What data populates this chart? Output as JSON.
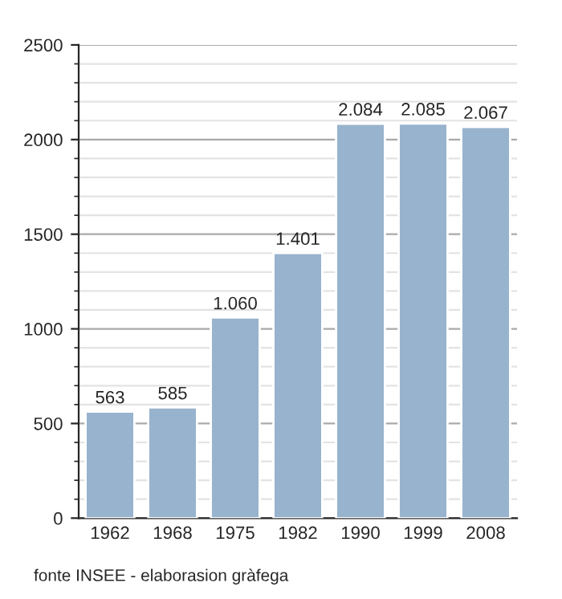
{
  "chart_data": {
    "type": "bar",
    "categories": [
      "1962",
      "1968",
      "1975",
      "1982",
      "1990",
      "1999",
      "2008"
    ],
    "values": [
      563,
      585,
      1060,
      1401,
      2084,
      2085,
      2067
    ],
    "value_labels": [
      "563",
      "585",
      "1.060",
      "1.401",
      "2.084",
      "2.085",
      "2.067"
    ],
    "color": "#98b3cd",
    "ylim": [
      0,
      2500
    ],
    "yticks": [
      0,
      500,
      1000,
      1500,
      2000,
      2500
    ],
    "grid": "y",
    "annotations": [
      "fonte INSEE - elaborasion gràfega"
    ]
  }
}
